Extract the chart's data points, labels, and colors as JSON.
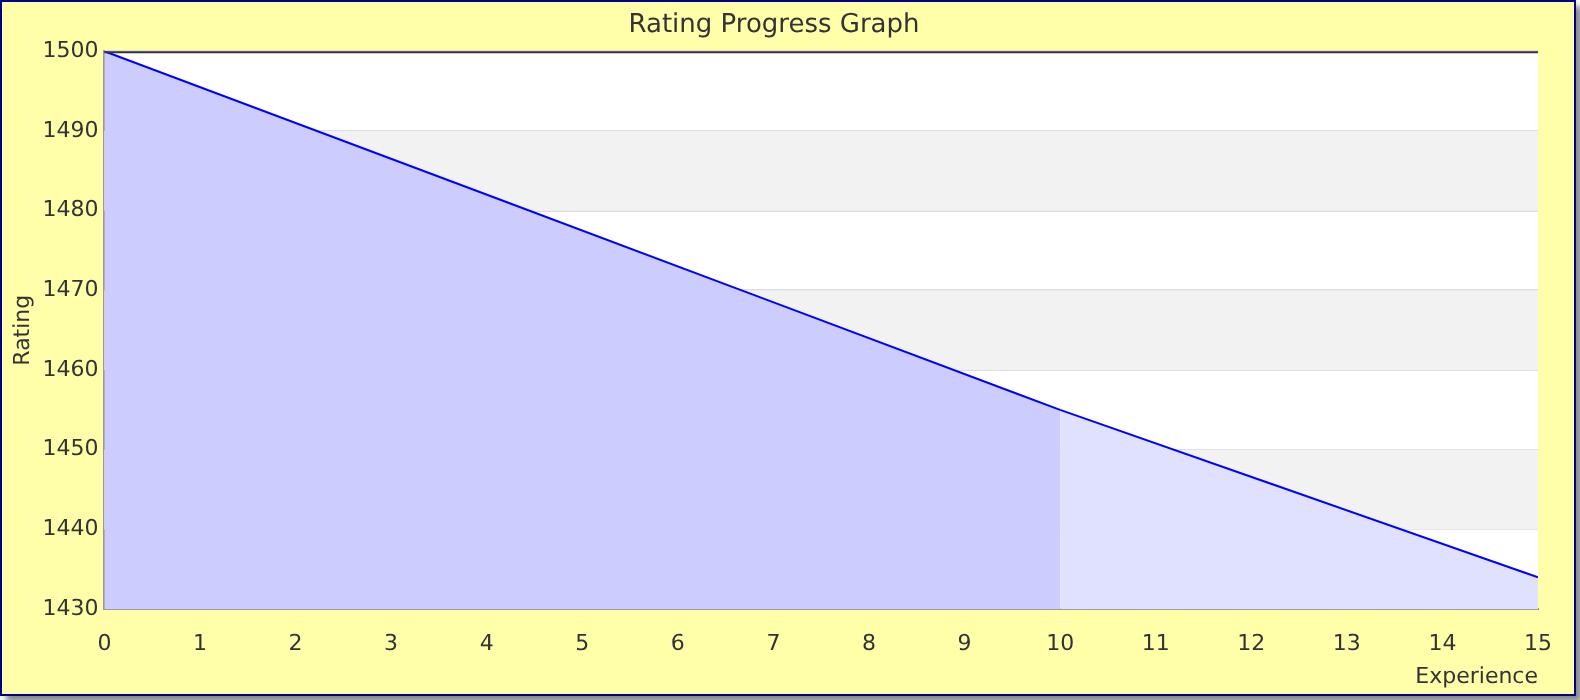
{
  "chart_data": {
    "type": "area",
    "title": "Rating Progress Graph",
    "xlabel": "Experience",
    "ylabel": "Rating",
    "series": [
      {
        "x": [
          0,
          10
        ],
        "values": [
          1500,
          1455
        ],
        "color": "#ccccff"
      },
      {
        "x": [
          10,
          15
        ],
        "values": [
          1455,
          1434
        ],
        "color": "#e0e0ff"
      }
    ],
    "xlim": [
      0,
      15
    ],
    "xticks": [
      0,
      1,
      2,
      3,
      4,
      5,
      6,
      7,
      8,
      9,
      10,
      11,
      12,
      13,
      14,
      15
    ],
    "ylim": [
      1430,
      1500
    ],
    "yticks": [
      1430,
      1440,
      1450,
      1460,
      1470,
      1480,
      1490,
      1500
    ],
    "grid": "y",
    "legend": false,
    "marker": "none",
    "line_style": "solid"
  }
}
